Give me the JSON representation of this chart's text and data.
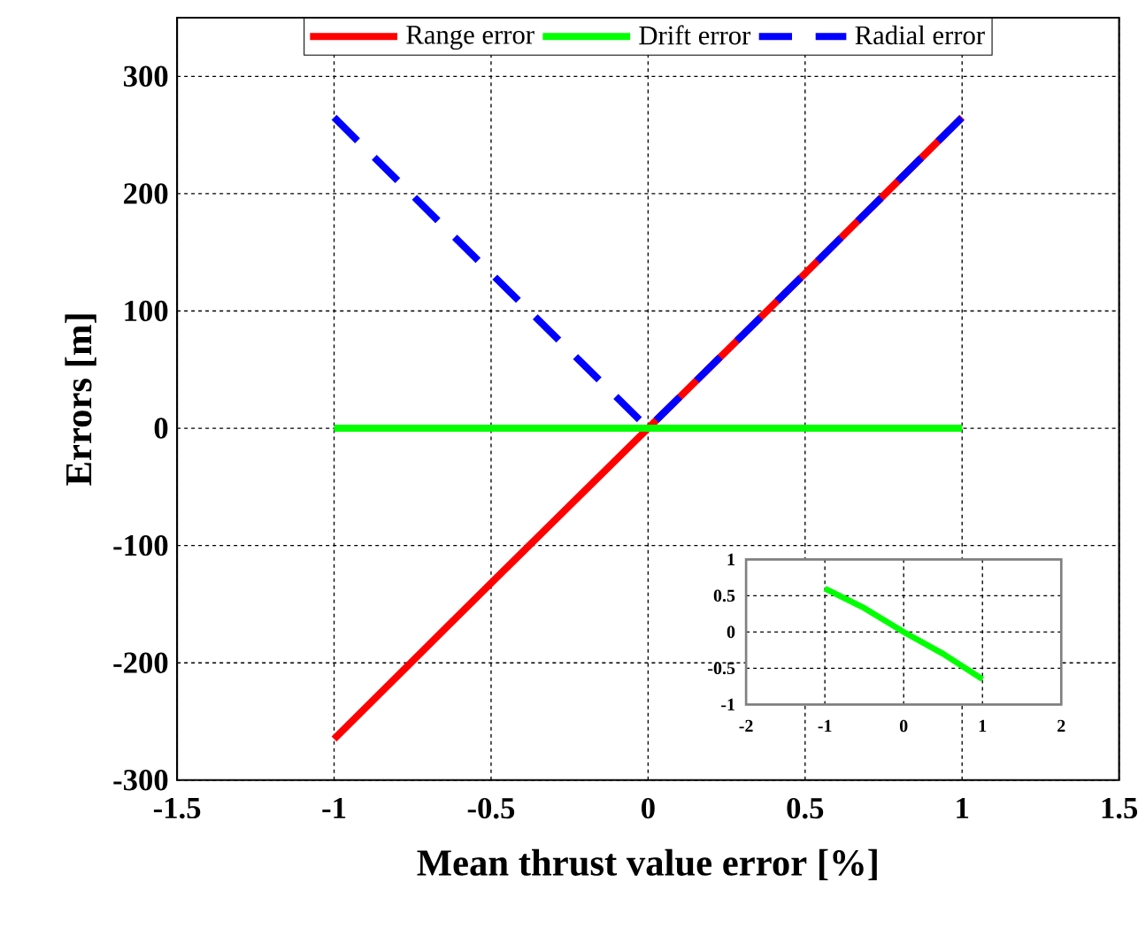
{
  "chart_data": [
    {
      "type": "line",
      "xlabel": "Mean thrust value error [%]",
      "ylabel": "Errors [m]",
      "x": [
        -1,
        -0.5,
        0,
        0.5,
        1
      ],
      "series": [
        {
          "name": "Range error",
          "color": "#ff0000",
          "line_style": "solid",
          "values": [
            -265,
            -132,
            0,
            132,
            265
          ]
        },
        {
          "name": "Drift error",
          "color": "#00ff00",
          "line_style": "solid",
          "values": [
            0,
            0,
            0,
            0,
            0
          ]
        },
        {
          "name": "Radial error",
          "color": "#0000ff",
          "line_style": "dashed",
          "values": [
            265,
            132,
            0,
            132,
            265
          ]
        }
      ],
      "xlim": [
        -1.5,
        1.5
      ],
      "ylim": [
        -300,
        350
      ],
      "xticks": [
        -1.5,
        -1,
        -0.5,
        0,
        0.5,
        1,
        1.5
      ],
      "yticks": [
        -300,
        -200,
        -100,
        0,
        100,
        200,
        300
      ],
      "grid": true,
      "legend": "top"
    },
    {
      "type": "line",
      "x": [
        -1,
        -0.5,
        0,
        0.5,
        1
      ],
      "series": [
        {
          "color": "#00ff00",
          "line_style": "solid",
          "values": [
            0.6,
            0.33,
            0,
            -0.3,
            -0.65
          ]
        }
      ],
      "xlim": [
        -2,
        2
      ],
      "ylim": [
        -1,
        1
      ],
      "xticks": [
        -2,
        -1,
        0,
        1,
        2
      ],
      "yticks": [
        -1,
        -0.5,
        0,
        0.5,
        1
      ],
      "grid": true
    }
  ]
}
